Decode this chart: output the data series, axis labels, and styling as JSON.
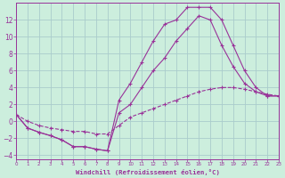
{
  "bg_color": "#cceedd",
  "grid_color": "#aacccc",
  "line_color": "#993399",
  "xlabel": "Windchill (Refroidissement éolien,°C)",
  "xlim": [
    0,
    23
  ],
  "ylim": [
    -4.5,
    14.0
  ],
  "xticks": [
    0,
    1,
    2,
    3,
    4,
    5,
    6,
    7,
    8,
    9,
    10,
    11,
    12,
    13,
    14,
    15,
    16,
    17,
    18,
    19,
    20,
    21,
    22,
    23
  ],
  "yticks": [
    -4,
    -2,
    0,
    2,
    4,
    6,
    8,
    10,
    12
  ],
  "curve1_x": [
    0,
    1,
    2,
    3,
    4,
    5,
    6,
    7,
    8,
    9,
    10,
    11,
    12,
    13,
    14,
    15,
    16,
    17,
    18,
    19,
    20,
    21,
    22,
    23
  ],
  "curve1_y": [
    0.8,
    -0.8,
    -1.3,
    -1.7,
    -2.2,
    -3.0,
    -3.0,
    -3.3,
    -3.5,
    2.5,
    4.5,
    7.0,
    9.5,
    11.5,
    12.0,
    13.5,
    13.5,
    13.5,
    12.0,
    9.0,
    6.0,
    4.0,
    3.0,
    3.0
  ],
  "curve2_x": [
    0,
    1,
    2,
    3,
    4,
    5,
    6,
    7,
    8,
    9,
    10,
    11,
    12,
    13,
    14,
    15,
    16,
    17,
    18,
    19,
    20,
    21,
    22,
    23
  ],
  "curve2_y": [
    0.8,
    -0.8,
    -1.3,
    -1.7,
    -2.2,
    -3.0,
    -3.0,
    -3.3,
    -3.5,
    1.0,
    2.0,
    4.0,
    6.0,
    7.5,
    9.5,
    11.0,
    12.5,
    12.0,
    9.0,
    6.5,
    4.5,
    3.5,
    3.0,
    3.0
  ],
  "curve3_x": [
    0,
    1,
    2,
    3,
    4,
    5,
    6,
    7,
    8,
    9,
    10,
    11,
    12,
    13,
    14,
    15,
    16,
    17,
    18,
    19,
    20,
    21,
    22,
    23
  ],
  "curve3_y": [
    0.8,
    0.0,
    -0.5,
    -0.8,
    -1.0,
    -1.2,
    -1.2,
    -1.5,
    -1.5,
    -0.5,
    0.5,
    1.0,
    1.5,
    2.0,
    2.5,
    3.0,
    3.5,
    3.8,
    4.0,
    4.0,
    3.8,
    3.5,
    3.2,
    3.0
  ]
}
